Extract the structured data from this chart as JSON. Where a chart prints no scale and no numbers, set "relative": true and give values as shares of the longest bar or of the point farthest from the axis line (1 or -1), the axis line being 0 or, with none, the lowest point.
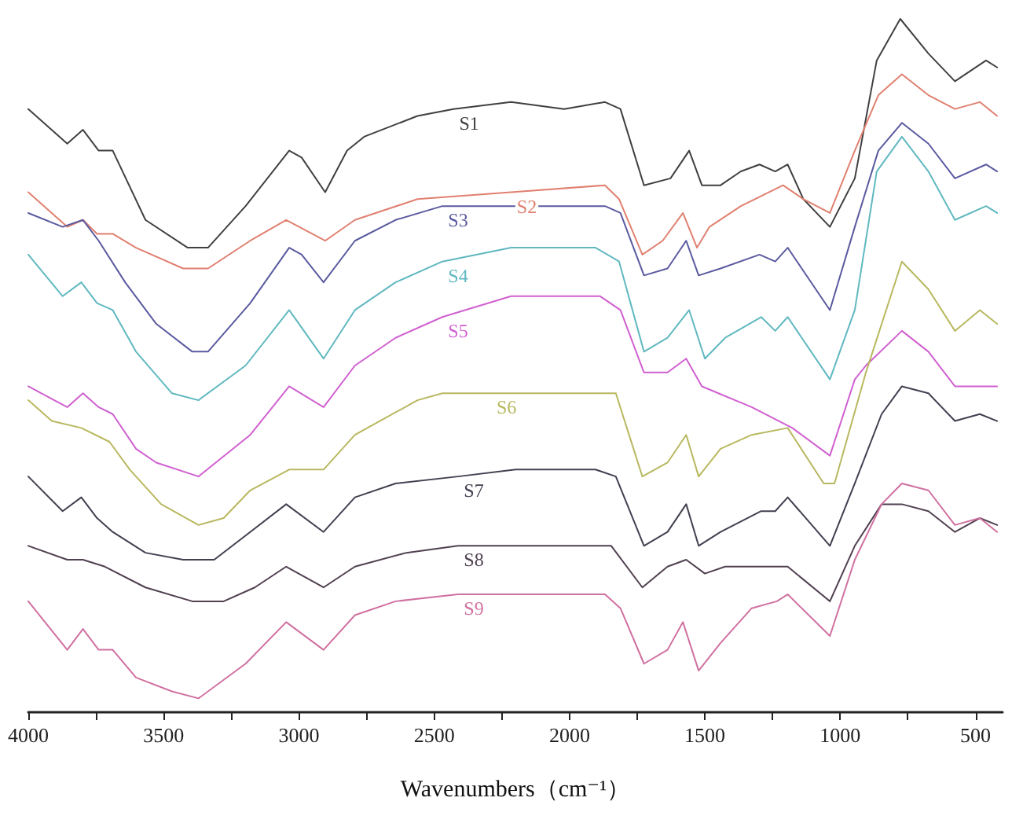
{
  "chart_data": {
    "type": "line",
    "xlabel": "Wavenumbers（cm⁻¹）",
    "relative": true,
    "grid": false,
    "legend": false,
    "marker": "none",
    "line_style": "solid",
    "xlim": [
      4000,
      400
    ],
    "xticks": [
      4000,
      {
        "value": 3750,
        "label": null
      },
      3500,
      {
        "value": 3250,
        "label": null
      },
      3000,
      {
        "value": 2750,
        "label": null
      },
      2500,
      {
        "value": 2250,
        "label": null
      },
      2000,
      {
        "value": 1750,
        "label": null
      },
      1500,
      {
        "value": 1250,
        "label": null
      },
      1000,
      {
        "value": 750,
        "label": null
      },
      500
    ],
    "series": [
      {
        "name": "S1",
        "color": "#404040",
        "x": [
          4000,
          3856,
          3798,
          3740,
          3688,
          3567,
          3411,
          3336,
          3197,
          3036,
          2990,
          2903,
          2822,
          2759,
          2562,
          2429,
          2216,
          2020,
          1869,
          1812,
          1725,
          1627,
          1558,
          1511,
          1442,
          1367,
          1298,
          1240,
          1194,
          1136,
          1038,
          946,
          865,
          778,
          674,
          576,
          461,
          420
        ],
        "values": [
          0.87,
          0.82,
          0.84,
          0.81,
          0.81,
          0.71,
          0.67,
          0.67,
          0.73,
          0.81,
          0.8,
          0.75,
          0.81,
          0.83,
          0.86,
          0.87,
          0.88,
          0.87,
          0.88,
          0.87,
          0.76,
          0.77,
          0.81,
          0.76,
          0.76,
          0.78,
          0.79,
          0.78,
          0.79,
          0.74,
          0.7,
          0.77,
          0.94,
          1.0,
          0.95,
          0.91,
          0.94,
          0.93
        ]
      },
      {
        "name": "S2",
        "color": "#e08070",
        "x": [
          4000,
          3856,
          3798,
          3746,
          3688,
          3602,
          3428,
          3336,
          3180,
          3047,
          2903,
          2793,
          2562,
          2216,
          1869,
          1817,
          1731,
          1656,
          1581,
          1529,
          1483,
          1367,
          1211,
          1136,
          1038,
          946,
          859,
          772,
          674,
          576,
          484,
          420
        ],
        "values": [
          0.75,
          0.7,
          0.71,
          0.69,
          0.69,
          0.67,
          0.64,
          0.64,
          0.68,
          0.71,
          0.68,
          0.71,
          0.74,
          0.75,
          0.76,
          0.74,
          0.66,
          0.68,
          0.72,
          0.67,
          0.7,
          0.73,
          0.76,
          0.74,
          0.72,
          0.81,
          0.89,
          0.92,
          0.89,
          0.87,
          0.88,
          0.86
        ]
      },
      {
        "name": "S3",
        "color": "#5a5aa0",
        "x": [
          4000,
          3873,
          3798,
          3740,
          3642,
          3527,
          3394,
          3336,
          3180,
          3036,
          2990,
          2909,
          2793,
          2643,
          2470,
          2216,
          2020,
          1869,
          1812,
          1725,
          1638,
          1569,
          1523,
          1442,
          1298,
          1240,
          1194,
          1038,
          946,
          859,
          772,
          674,
          576,
          461,
          420
        ],
        "values": [
          0.72,
          0.7,
          0.71,
          0.68,
          0.62,
          0.56,
          0.52,
          0.52,
          0.59,
          0.67,
          0.66,
          0.62,
          0.68,
          0.71,
          0.73,
          0.73,
          0.73,
          0.73,
          0.72,
          0.63,
          0.64,
          0.68,
          0.63,
          0.64,
          0.66,
          0.65,
          0.67,
          0.58,
          0.7,
          0.81,
          0.85,
          0.82,
          0.77,
          0.79,
          0.78
        ]
      },
      {
        "name": "S4",
        "color": "#60b8c0",
        "x": [
          4000,
          3873,
          3804,
          3746,
          3688,
          3602,
          3469,
          3371,
          3197,
          3036,
          2909,
          2793,
          2643,
          2470,
          2216,
          1904,
          1817,
          1725,
          1638,
          1558,
          1500,
          1425,
          1292,
          1240,
          1194,
          1038,
          946,
          865,
          772,
          674,
          576,
          461,
          420
        ],
        "values": [
          0.66,
          0.6,
          0.62,
          0.59,
          0.58,
          0.52,
          0.46,
          0.45,
          0.5,
          0.58,
          0.51,
          0.58,
          0.62,
          0.65,
          0.67,
          0.67,
          0.65,
          0.52,
          0.54,
          0.58,
          0.51,
          0.54,
          0.57,
          0.55,
          0.57,
          0.48,
          0.58,
          0.78,
          0.83,
          0.78,
          0.71,
          0.73,
          0.72
        ]
      },
      {
        "name": "S5",
        "color": "#d060d0",
        "x": [
          4000,
          3856,
          3798,
          3740,
          3688,
          3602,
          3527,
          3371,
          3180,
          3036,
          2909,
          2793,
          2643,
          2470,
          2216,
          1887,
          1812,
          1725,
          1638,
          1569,
          1511,
          1327,
          1177,
          1038,
          946,
          905,
          772,
          674,
          576,
          461,
          420
        ],
        "values": [
          0.47,
          0.44,
          0.46,
          0.44,
          0.43,
          0.38,
          0.36,
          0.34,
          0.4,
          0.47,
          0.44,
          0.5,
          0.54,
          0.57,
          0.6,
          0.6,
          0.58,
          0.49,
          0.49,
          0.51,
          0.47,
          0.44,
          0.41,
          0.37,
          0.48,
          0.5,
          0.55,
          0.52,
          0.47,
          0.47,
          0.47
        ]
      },
      {
        "name": "S6",
        "color": "#b8b860",
        "x": [
          4000,
          3913,
          3804,
          3700,
          3625,
          3509,
          3371,
          3278,
          3180,
          3036,
          2909,
          2793,
          2562,
          2470,
          2291,
          1904,
          1829,
          1731,
          1638,
          1569,
          1523,
          1442,
          1327,
          1194,
          1061,
          1021,
          905,
          772,
          674,
          576,
          484,
          420
        ],
        "values": [
          0.45,
          0.42,
          0.41,
          0.39,
          0.35,
          0.3,
          0.27,
          0.28,
          0.32,
          0.35,
          0.35,
          0.4,
          0.45,
          0.46,
          0.46,
          0.46,
          0.46,
          0.34,
          0.36,
          0.4,
          0.34,
          0.38,
          0.4,
          0.41,
          0.33,
          0.33,
          0.49,
          0.65,
          0.61,
          0.55,
          0.58,
          0.56
        ]
      },
      {
        "name": "S7",
        "color": "#404050",
        "x": [
          4000,
          3873,
          3804,
          3746,
          3688,
          3567,
          3428,
          3313,
          3180,
          3047,
          2909,
          2793,
          2643,
          2412,
          2199,
          1904,
          1829,
          1725,
          1638,
          1569,
          1523,
          1442,
          1292,
          1240,
          1194,
          1038,
          946,
          847,
          772,
          674,
          576,
          484,
          420
        ],
        "values": [
          0.34,
          0.29,
          0.31,
          0.28,
          0.26,
          0.23,
          0.22,
          0.22,
          0.26,
          0.3,
          0.26,
          0.31,
          0.33,
          0.34,
          0.35,
          0.35,
          0.34,
          0.24,
          0.26,
          0.3,
          0.24,
          0.26,
          0.29,
          0.29,
          0.31,
          0.24,
          0.33,
          0.43,
          0.47,
          0.46,
          0.42,
          0.43,
          0.42
        ]
      },
      {
        "name": "S8",
        "color": "#504050",
        "x": [
          4000,
          3856,
          3798,
          3717,
          3567,
          3394,
          3278,
          3163,
          3047,
          2909,
          2793,
          2603,
          2412,
          2199,
          1846,
          1731,
          1638,
          1569,
          1500,
          1425,
          1292,
          1194,
          1038,
          946,
          847,
          772,
          674,
          576,
          484,
          420
        ],
        "values": [
          0.24,
          0.22,
          0.22,
          0.21,
          0.18,
          0.16,
          0.16,
          0.18,
          0.21,
          0.18,
          0.21,
          0.23,
          0.24,
          0.24,
          0.24,
          0.18,
          0.21,
          0.22,
          0.2,
          0.21,
          0.21,
          0.21,
          0.16,
          0.24,
          0.3,
          0.3,
          0.29,
          0.26,
          0.28,
          0.27
        ]
      },
      {
        "name": "S9",
        "color": "#d070a0",
        "x": [
          4000,
          3856,
          3798,
          3740,
          3688,
          3602,
          3469,
          3371,
          3197,
          3047,
          2909,
          2793,
          2643,
          2412,
          2199,
          1869,
          1812,
          1725,
          1638,
          1581,
          1523,
          1442,
          1327,
          1234,
          1194,
          1038,
          946,
          847,
          772,
          674,
          576,
          484,
          420
        ],
        "values": [
          0.16,
          0.09,
          0.12,
          0.09,
          0.09,
          0.05,
          0.03,
          0.02,
          0.07,
          0.13,
          0.09,
          0.14,
          0.16,
          0.17,
          0.17,
          0.17,
          0.15,
          0.07,
          0.09,
          0.13,
          0.06,
          0.1,
          0.15,
          0.16,
          0.17,
          0.11,
          0.22,
          0.3,
          0.33,
          0.32,
          0.27,
          0.28,
          0.26
        ]
      }
    ]
  }
}
